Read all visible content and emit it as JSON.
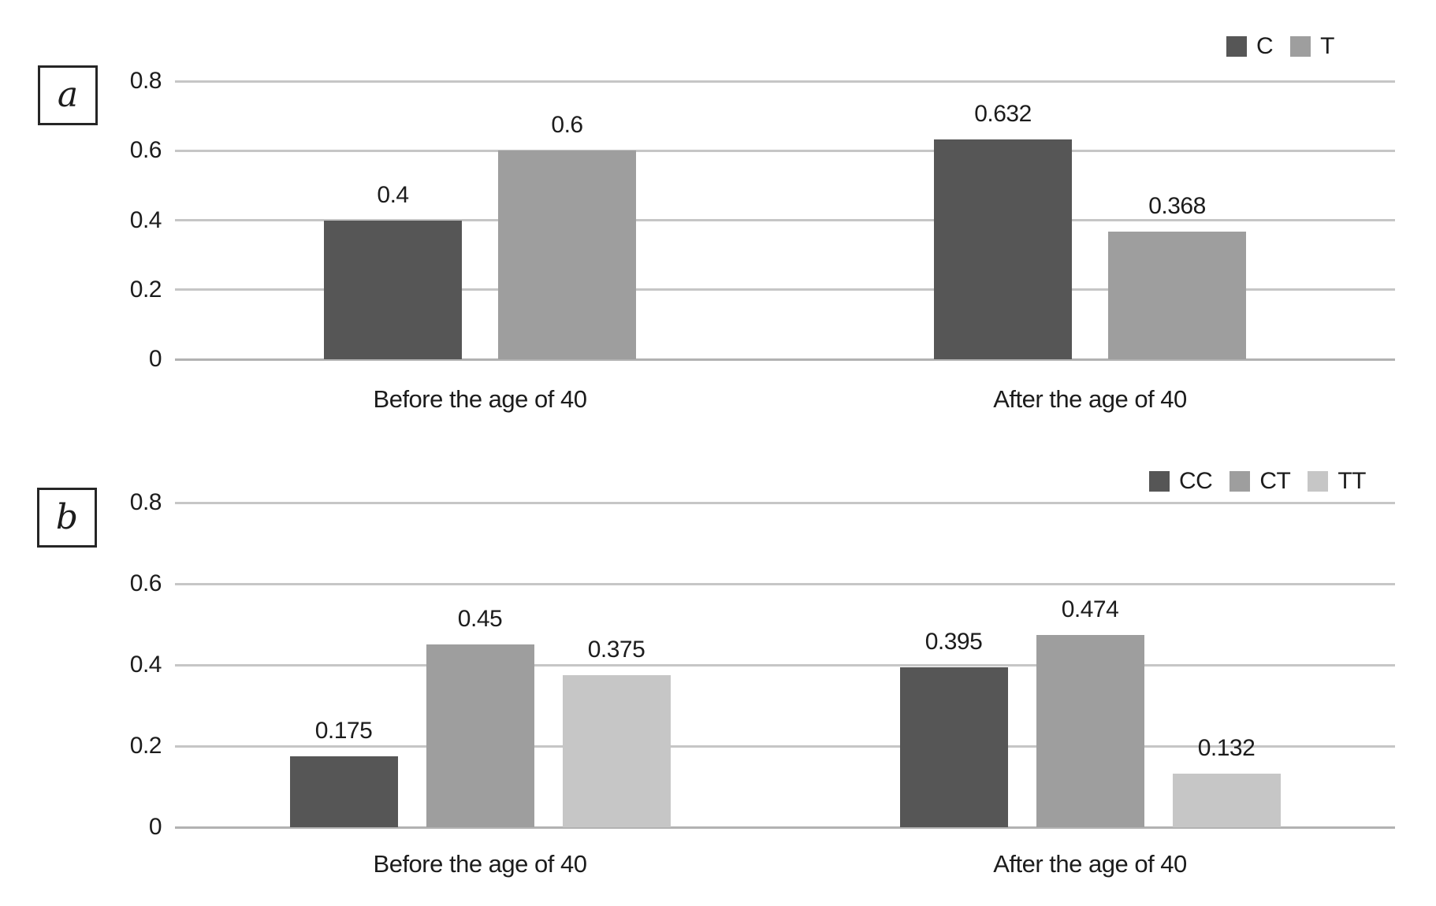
{
  "figure": {
    "background": "#ffffff",
    "text_color": "#1c1c1c",
    "grid_color": "#c6c6c6",
    "axis_line_color": "#b2b2b2"
  },
  "chart_data": [
    {
      "type": "bar",
      "panel_label": "a",
      "categories": [
        "Before the age of 40",
        "After the age of 40"
      ],
      "series": [
        {
          "name": "C",
          "color": "#565656",
          "values": [
            0.4,
            0.632
          ],
          "value_labels": [
            "0.4",
            "0.632"
          ]
        },
        {
          "name": "T",
          "color": "#9e9e9e",
          "values": [
            0.6,
            0.368
          ],
          "value_labels": [
            "0.6",
            "0.368"
          ]
        }
      ],
      "ylim": [
        0,
        0.8
      ],
      "y_ticks": [
        0,
        0.2,
        0.4,
        0.6,
        0.8
      ],
      "y_tick_labels": [
        "0",
        "0.2",
        "0.4",
        "0.6",
        "0.8"
      ],
      "grid": true,
      "legend_position": "top-right"
    },
    {
      "type": "bar",
      "panel_label": "b",
      "categories": [
        "Before the age of 40",
        "After the age of 40"
      ],
      "series": [
        {
          "name": "CC",
          "color": "#565656",
          "values": [
            0.175,
            0.395
          ],
          "value_labels": [
            "0.175",
            "0.395"
          ]
        },
        {
          "name": "CT",
          "color": "#9e9e9e",
          "values": [
            0.45,
            0.474
          ],
          "value_labels": [
            "0.45",
            "0.474"
          ]
        },
        {
          "name": "TT",
          "color": "#c6c6c6",
          "values": [
            0.375,
            0.132
          ],
          "value_labels": [
            "0.375",
            "0.132"
          ]
        }
      ],
      "ylim": [
        0,
        0.8
      ],
      "y_ticks": [
        0,
        0.2,
        0.4,
        0.6,
        0.8
      ],
      "y_tick_labels": [
        "0",
        "0.2",
        "0.4",
        "0.6",
        "0.8"
      ],
      "grid": true,
      "legend_position": "top-right"
    }
  ]
}
